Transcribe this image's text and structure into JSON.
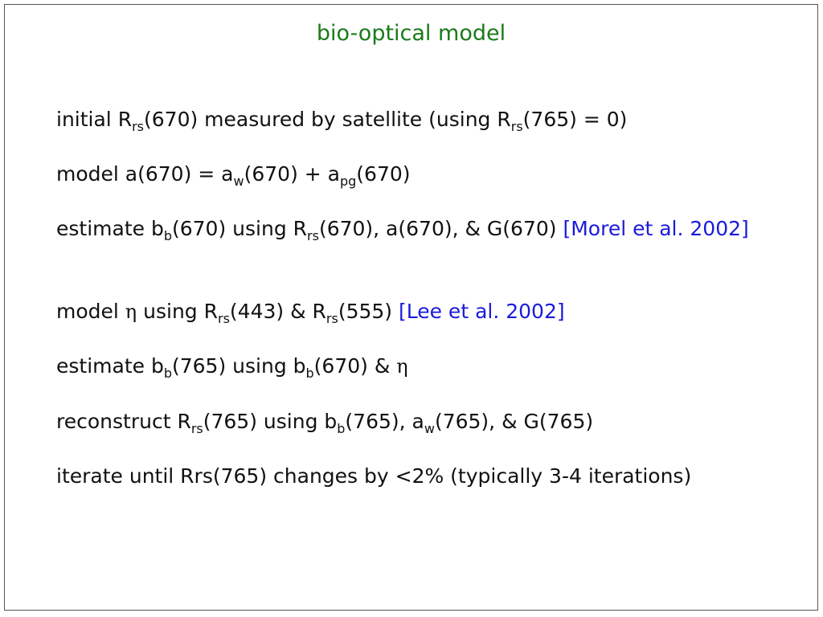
{
  "title": "bio-optical model",
  "lines": {
    "l1": {
      "a": "initial R",
      "a_sub": "rs",
      "b": "(670) measured by satellite (using R",
      "b_sub": "rs",
      "c": "(765) = 0)"
    },
    "l2": {
      "a": "model a(670) = a",
      "a_sub": "w",
      "b": "(670) + a",
      "b_sub": "pg",
      "c": "(670)"
    },
    "l3": {
      "a": "estimate b",
      "a_sub": "b",
      "b": "(670) using R",
      "b_sub": "rs",
      "c": "(670), a(670), & G(670) ",
      "ref": "[Morel et al. 2002]"
    },
    "l4": {
      "a": "model ",
      "eta": "η",
      "b": " using R",
      "b_sub": "rs",
      "c": "(443) & R",
      "c_sub": "rs",
      "d": "(555) ",
      "ref": "[Lee et al. 2002]"
    },
    "l5": {
      "a": "estimate b",
      "a_sub": "b",
      "b": "(765) using b",
      "b_sub": "b",
      "c": "(670) & ",
      "eta": "η"
    },
    "l6": {
      "a": "reconstruct R",
      "a_sub": "rs",
      "b": "(765) using b",
      "b_sub": "b",
      "c": "(765), a",
      "c_sub": "w",
      "d": "(765), & G(765)"
    },
    "l7": {
      "text": "iterate until Rrs(765) changes by <2% (typically 3-4 iterations)"
    }
  }
}
